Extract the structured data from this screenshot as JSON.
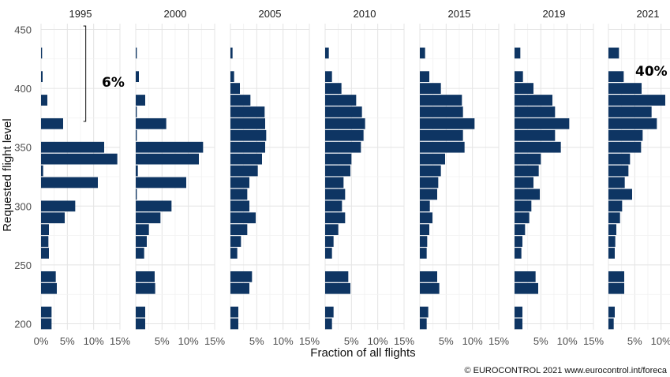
{
  "chart_data": {
    "type": "bar",
    "orientation": "horizontal",
    "xlabel": "Fraction of all flights",
    "ylabel": "Requested flight level",
    "ylim": [
      195,
      455
    ],
    "y_ticks": [
      "200",
      "250",
      "300",
      "350",
      "400",
      "450"
    ],
    "y_tick_values": [
      200,
      250,
      300,
      350,
      400,
      450
    ],
    "x_ticks": [
      "0%",
      "5%",
      "10%",
      "15%"
    ],
    "x_tick_values": [
      0,
      5,
      10,
      15
    ],
    "grid": true,
    "bar_color": "#0e3563",
    "flight_levels": [
      200,
      210,
      230,
      240,
      260,
      270,
      280,
      290,
      300,
      310,
      320,
      330,
      340,
      350,
      360,
      370,
      380,
      390,
      400,
      410,
      430
    ],
    "panels": [
      {
        "name": "1995",
        "xlim": [
          0,
          15
        ],
        "x_ticks": [
          "0%",
          "5%",
          "10%",
          "15%"
        ],
        "values": [
          2.0,
          2.0,
          3.0,
          2.8,
          1.5,
          1.4,
          1.5,
          4.5,
          6.5,
          0,
          10.8,
          0.4,
          14.5,
          12.0,
          0,
          4.2,
          0,
          1.2,
          0,
          0.3,
          0.2
        ],
        "annotation": "6%",
        "bracket": [
          372,
          453
        ]
      },
      {
        "name": "2000",
        "xlim": [
          0,
          15
        ],
        "x_ticks": [
          "5%",
          "10%",
          "15%"
        ],
        "values": [
          1.8,
          1.8,
          3.7,
          3.6,
          1.6,
          2.1,
          2.5,
          4.7,
          6.8,
          0.2,
          9.6,
          0.4,
          12.0,
          12.8,
          0.2,
          5.8,
          0.2,
          1.8,
          0,
          0.6,
          0.2
        ],
        "annotation": "",
        "bracket": null
      },
      {
        "name": "2005",
        "xlim": [
          0,
          15
        ],
        "x_ticks": [
          "5%",
          "10%",
          "15%"
        ],
        "values": [
          1.5,
          1.5,
          3.6,
          4.1,
          1.3,
          2.0,
          3.2,
          4.8,
          3.6,
          3.2,
          3.6,
          5.2,
          6.0,
          6.6,
          6.8,
          6.6,
          6.5,
          3.8,
          1.8,
          0.7,
          0.4
        ],
        "annotation": "",
        "bracket": null
      },
      {
        "name": "2010",
        "xlim": [
          0,
          15
        ],
        "x_ticks": [
          "5%",
          "10%",
          "15%"
        ],
        "values": [
          1.3,
          1.6,
          4.8,
          4.4,
          1.3,
          1.6,
          2.5,
          3.8,
          3.2,
          3.8,
          3.5,
          4.8,
          5.0,
          6.8,
          7.3,
          7.6,
          7.0,
          5.9,
          3.1,
          1.3,
          0.7
        ],
        "annotation": "",
        "bracket": null
      },
      {
        "name": "2015",
        "xlim": [
          0,
          15
        ],
        "x_ticks": [
          "5%",
          "10%",
          "15%"
        ],
        "values": [
          1.3,
          1.6,
          3.7,
          3.3,
          1.3,
          1.4,
          1.8,
          2.4,
          1.9,
          3.3,
          3.5,
          4.0,
          4.8,
          8.5,
          8.2,
          10.4,
          8.2,
          8.0,
          4.0,
          1.8,
          1.0
        ],
        "annotation": "",
        "bracket": null
      },
      {
        "name": "2019",
        "xlim": [
          0,
          15
        ],
        "x_ticks": [
          "5%",
          "10%",
          "15%"
        ],
        "values": [
          1.5,
          1.5,
          4.5,
          4.0,
          1.3,
          1.5,
          2.0,
          2.8,
          3.2,
          4.8,
          3.6,
          4.6,
          5.0,
          8.8,
          7.7,
          10.4,
          7.7,
          7.2,
          3.6,
          1.6,
          1.1
        ],
        "annotation": "",
        "bracket": null
      },
      {
        "name": "2021",
        "xlim": [
          0,
          15
        ],
        "x_ticks": [
          "5%",
          "10%",
          "15%"
        ],
        "values": [
          1.0,
          1.2,
          3.0,
          3.0,
          1.2,
          1.3,
          1.5,
          2.2,
          2.6,
          4.5,
          3.1,
          3.8,
          4.1,
          6.2,
          6.5,
          9.2,
          8.2,
          10.8,
          6.3,
          2.9,
          2.0
        ],
        "annotation": "40%",
        "bracket": [
          372,
          453
        ]
      }
    ]
  },
  "credit": "© EUROCONTROL 2021 www.eurocontrol.int/foreca"
}
